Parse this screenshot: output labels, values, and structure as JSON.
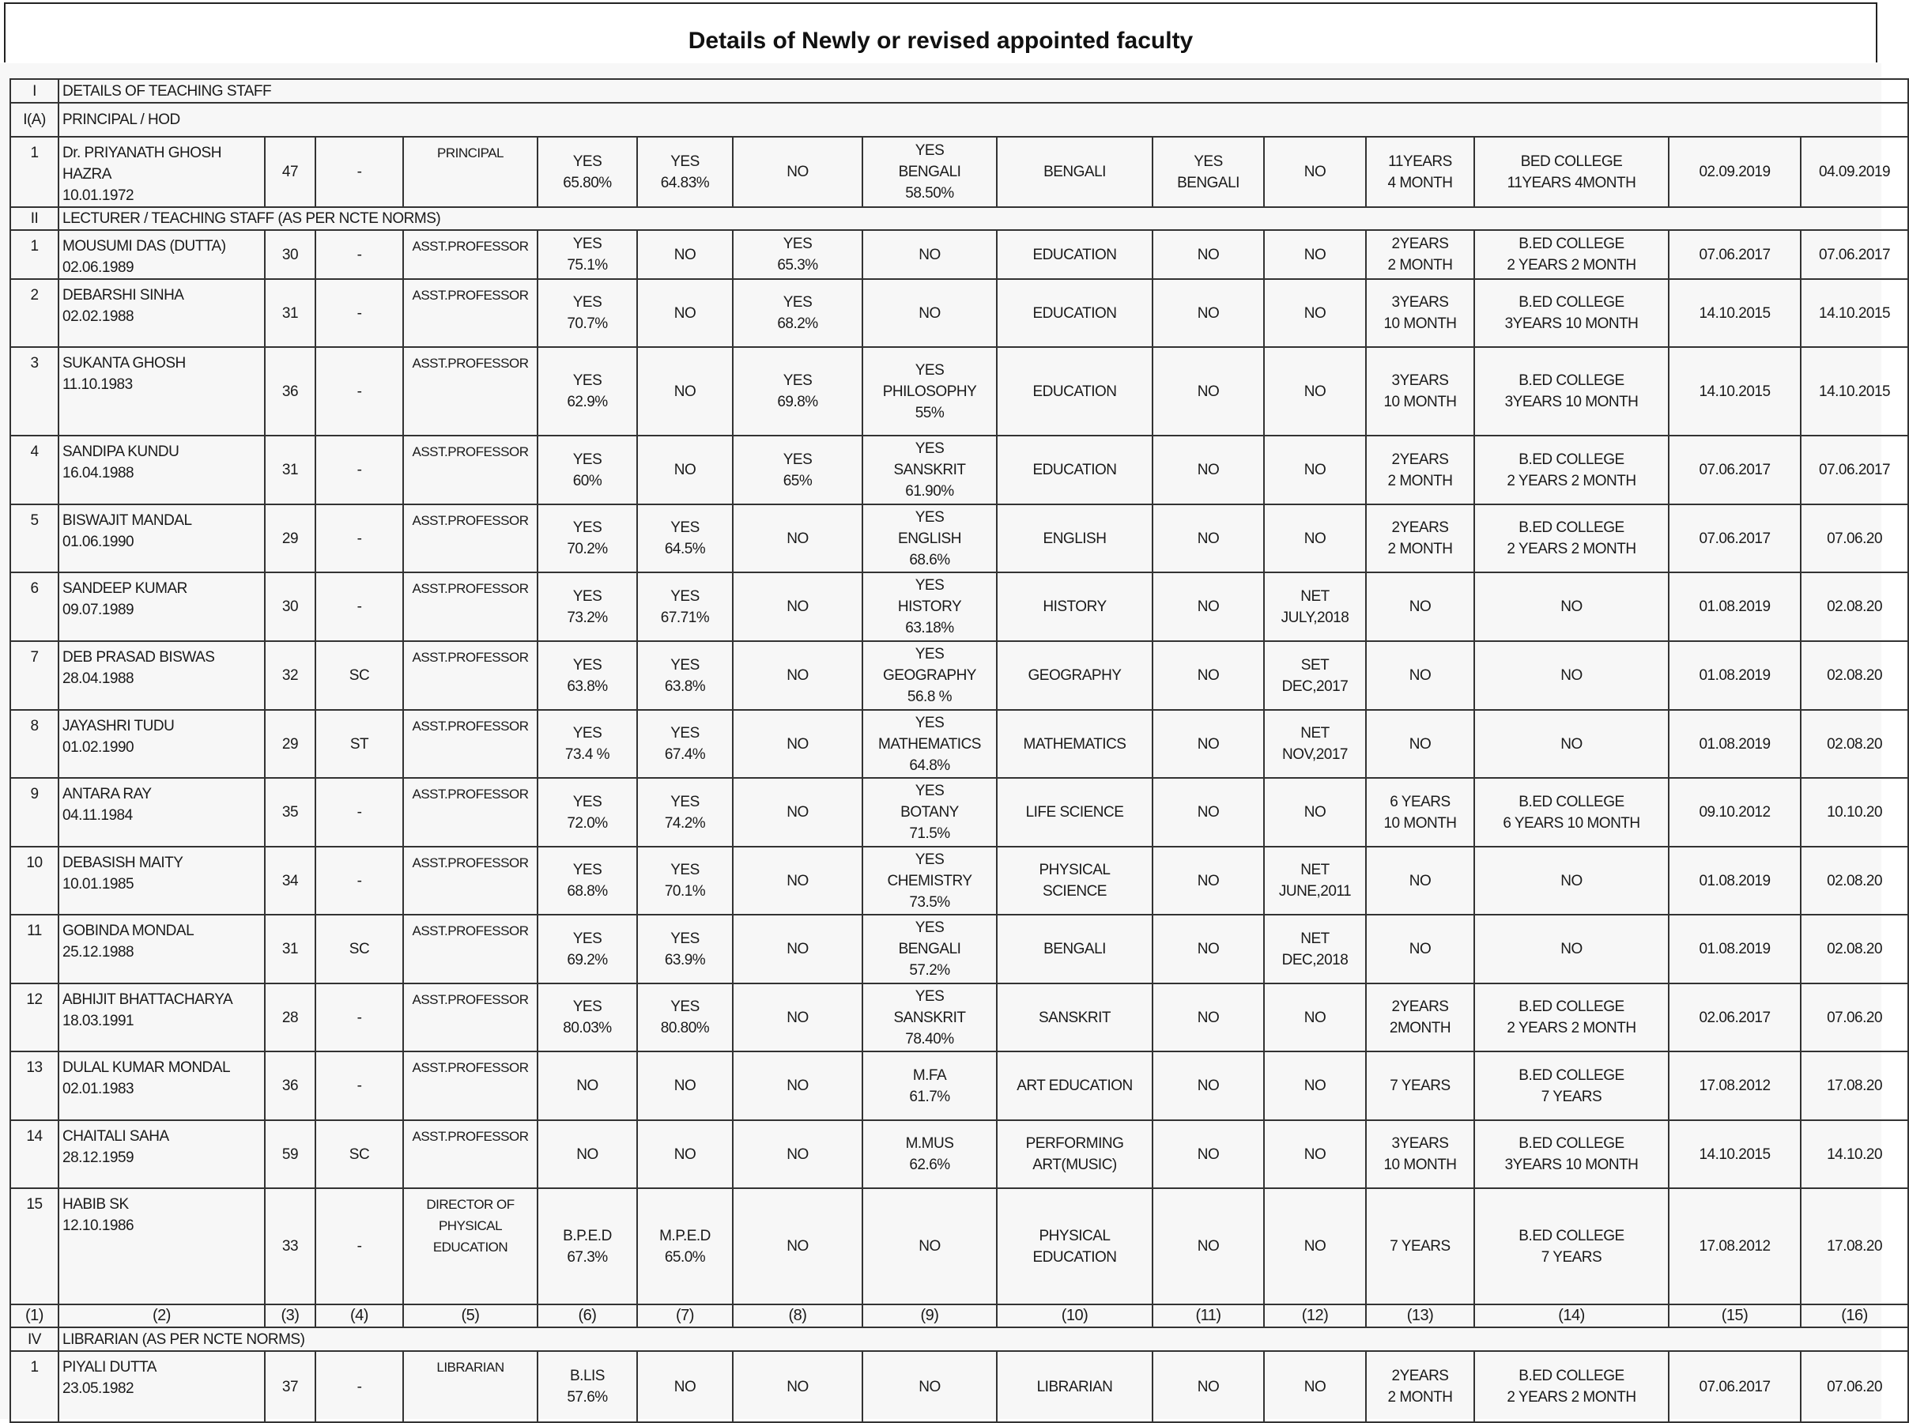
{
  "title": "Details of Newly or revised appointed faculty",
  "rows": [
    {
      "type": "section",
      "num": "I",
      "label": "DETAILS OF TEACHING STAFF"
    },
    {
      "type": "section",
      "num": "I(A)",
      "label": "PRINCIPAL / HOD"
    },
    {
      "type": "data",
      "cells": [
        "1",
        "Dr. PRIYANATH GHOSH\nHAZRA\n10.01.1972",
        "47",
        "-",
        "PRINCIPAL",
        "YES\n65.80%",
        "YES\n64.83%",
        "NO",
        "YES\nBENGALI\n58.50%",
        "BENGALI",
        "YES\nBENGALI",
        "NO",
        "11YEARS\n4 MONTH",
        "BED COLLEGE\n11YEARS 4MONTH",
        "02.09.2019",
        "04.09.2019"
      ]
    },
    {
      "type": "section",
      "num": "II",
      "label": "LECTURER / TEACHING STAFF (AS PER NCTE NORMS)"
    },
    {
      "type": "data",
      "cells": [
        "1",
        "MOUSUMI DAS (DUTTA)\n02.06.1989",
        "30",
        "-",
        "ASST.PROFESSOR",
        "YES\n75.1%",
        "NO",
        "YES\n65.3%",
        "NO",
        "EDUCATION",
        "NO",
        "NO",
        "2YEARS\n2 MONTH",
        "B.ED COLLEGE\n2 YEARS 2 MONTH",
        "07.06.2017",
        "07.06.2017"
      ]
    },
    {
      "type": "data",
      "cells": [
        "2",
        "DEBARSHI SINHA\n02.02.1988",
        "31",
        "-",
        "ASST.PROFESSOR",
        "YES\n70.7%",
        "NO",
        "YES\n68.2%",
        "NO",
        "EDUCATION",
        "NO",
        "NO",
        "3YEARS\n10 MONTH",
        "B.ED COLLEGE\n3YEARS 10 MONTH",
        "14.10.2015",
        "14.10.2015"
      ]
    },
    {
      "type": "data",
      "cells": [
        "3",
        "SUKANTA GHOSH\n11.10.1983",
        "36",
        "-",
        "ASST.PROFESSOR",
        "YES\n62.9%",
        "NO",
        "YES\n69.8%",
        "YES\nPHILOSOPHY\n55%",
        "EDUCATION",
        "NO",
        "NO",
        "3YEARS\n10 MONTH",
        "B.ED COLLEGE\n3YEARS 10 MONTH",
        "14.10.2015",
        "14.10.2015"
      ]
    },
    {
      "type": "data",
      "cells": [
        "4",
        "SANDIPA KUNDU\n16.04.1988",
        "31",
        "-",
        "ASST.PROFESSOR",
        "YES\n60%",
        "NO",
        "YES\n65%",
        "YES\nSANSKRIT\n61.90%",
        "EDUCATION",
        "NO",
        "NO",
        "2YEARS\n2 MONTH",
        "B.ED COLLEGE\n2 YEARS 2 MONTH",
        "07.06.2017",
        "07.06.2017"
      ]
    },
    {
      "type": "data",
      "cells": [
        "5",
        "BISWAJIT MANDAL\n01.06.1990",
        "29",
        "-",
        "ASST.PROFESSOR",
        "YES\n70.2%",
        "YES\n64.5%",
        "NO",
        "YES\nENGLISH\n68.6%",
        "ENGLISH",
        "NO",
        "NO",
        "2YEARS\n2 MONTH",
        "B.ED COLLEGE\n2 YEARS 2 MONTH",
        "07.06.2017",
        "07.06.20"
      ]
    },
    {
      "type": "data",
      "cells": [
        "6",
        "SANDEEP KUMAR\n09.07.1989",
        "30",
        "-",
        "ASST.PROFESSOR",
        "YES\n73.2%",
        "YES\n67.71%",
        "NO",
        "YES\nHISTORY\n63.18%",
        "HISTORY",
        "NO",
        "NET\nJULY,2018",
        "NO",
        "NO",
        "01.08.2019",
        "02.08.20"
      ]
    },
    {
      "type": "data",
      "cells": [
        "7",
        "DEB PRASAD BISWAS\n28.04.1988",
        "32",
        "SC",
        "ASST.PROFESSOR",
        "YES\n63.8%",
        "YES\n63.8%",
        "NO",
        "YES\nGEOGRAPHY\n56.8 %",
        "GEOGRAPHY",
        "NO",
        "SET\nDEC,2017",
        "NO",
        "NO",
        "01.08.2019",
        "02.08.20"
      ]
    },
    {
      "type": "data",
      "cells": [
        "8",
        "JAYASHRI TUDU\n01.02.1990",
        "29",
        "ST",
        "ASST.PROFESSOR",
        "YES\n73.4 %",
        "YES\n67.4%",
        "NO",
        "YES\nMATHEMATICS\n64.8%",
        "MATHEMATICS",
        "NO",
        "NET\nNOV,2017",
        "NO",
        "NO",
        "01.08.2019",
        "02.08.20"
      ]
    },
    {
      "type": "data",
      "cells": [
        "9",
        "ANTARA RAY\n04.11.1984",
        "35",
        "-",
        "ASST.PROFESSOR",
        "YES\n72.0%",
        "YES\n74.2%",
        "NO",
        "YES\nBOTANY\n71.5%",
        "LIFE SCIENCE",
        "NO",
        "NO",
        "6 YEARS\n10 MONTH",
        "B.ED COLLEGE\n6 YEARS 10 MONTH",
        "09.10.2012",
        "10.10.20"
      ]
    },
    {
      "type": "data",
      "cells": [
        "10",
        "DEBASISH MAITY\n10.01.1985",
        "34",
        "-",
        "ASST.PROFESSOR",
        "YES\n68.8%",
        "YES\n70.1%",
        "NO",
        "YES\nCHEMISTRY\n73.5%",
        "PHYSICAL\nSCIENCE",
        "NO",
        "NET\nJUNE,2011",
        "NO",
        "NO",
        "01.08.2019",
        "02.08.20"
      ]
    },
    {
      "type": "data",
      "cells": [
        "11",
        "GOBINDA MONDAL\n25.12.1988",
        "31",
        "SC",
        "ASST.PROFESSOR",
        "YES\n69.2%",
        "YES\n63.9%",
        "NO",
        "YES\nBENGALI\n57.2%",
        "BENGALI",
        "NO",
        "NET\nDEC,2018",
        "NO",
        "NO",
        "01.08.2019",
        "02.08.20"
      ]
    },
    {
      "type": "data",
      "cells": [
        "12",
        "ABHIJIT BHATTACHARYA\n18.03.1991",
        "28",
        "-",
        "ASST.PROFESSOR",
        "YES\n80.03%",
        "YES\n80.80%",
        "NO",
        "YES\nSANSKRIT\n78.40%",
        "SANSKRIT",
        "NO",
        "NO",
        "2YEARS\n2MONTH",
        "B.ED COLLEGE\n2 YEARS 2 MONTH",
        "02.06.2017",
        "07.06.20"
      ]
    },
    {
      "type": "data",
      "cells": [
        "13",
        "DULAL KUMAR MONDAL\n02.01.1983",
        "36",
        "-",
        "ASST.PROFESSOR",
        "NO",
        "NO",
        "NO",
        "M.FA\n61.7%",
        "ART EDUCATION",
        "NO",
        "NO",
        "7 YEARS",
        "B.ED COLLEGE\n7 YEARS",
        "17.08.2012",
        "17.08.20"
      ]
    },
    {
      "type": "data",
      "cells": [
        "14",
        "CHAITALI SAHA\n28.12.1959",
        "59",
        "SC",
        "ASST.PROFESSOR",
        "NO",
        "NO",
        "NO",
        "M.MUS\n62.6%",
        "PERFORMING\nART(MUSIC)",
        "NO",
        "NO",
        "3YEARS\n10 MONTH",
        "B.ED COLLEGE\n3YEARS 10 MONTH",
        "14.10.2015",
        "14.10.20"
      ]
    },
    {
      "type": "data",
      "cells": [
        "15",
        "HABIB SK\n12.10.1986",
        "33",
        "-",
        "DIRECTOR OF\nPHYSICAL\nEDUCATION",
        "B.P.E.D\n67.3%",
        "M.P.E.D\n65.0%",
        "NO",
        "NO",
        "PHYSICAL\nEDUCATION",
        "NO",
        "NO",
        "7 YEARS",
        "B.ED COLLEGE\n7 YEARS",
        "17.08.2012",
        "17.08.20"
      ]
    },
    {
      "type": "foot",
      "cells": [
        "(1)",
        "(2)",
        "(3)",
        "(4)",
        "(5)",
        "(6)",
        "(7)",
        "(8)",
        "(9)",
        "(10)",
        "(11)",
        "(12)",
        "(13)",
        "(14)",
        "(15)",
        "(16)"
      ]
    },
    {
      "type": "section",
      "num": "IV",
      "label": "LIBRARIAN (AS PER NCTE NORMS)"
    },
    {
      "type": "data",
      "cells": [
        "1",
        "PIYALI DUTTA\n23.05.1982",
        "37",
        "-",
        "LIBRARIAN",
        "B.LIS\n57.6%",
        "NO",
        "NO",
        "NO",
        "LIBRARIAN",
        "NO",
        "NO",
        "2YEARS\n2 MONTH",
        "B.ED COLLEGE\n2 YEARS 2 MONTH",
        "07.06.2017",
        "07.06.20"
      ]
    }
  ]
}
